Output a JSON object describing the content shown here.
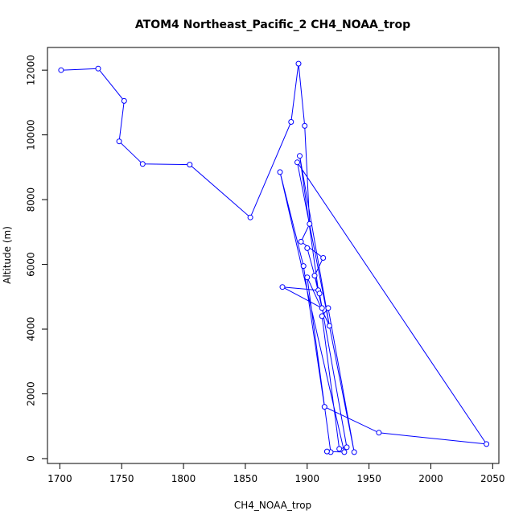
{
  "chart_data": {
    "type": "line",
    "title": "ATOM4 Northeast_Pacific_2 CH4_NOAA_trop",
    "xlabel": "CH4_NOAA_trop",
    "ylabel": "Altitude (m)",
    "xlim": [
      1690,
      2055
    ],
    "ylim": [
      -150,
      12700
    ],
    "xticks": [
      1700,
      1750,
      1800,
      1850,
      1900,
      1950,
      2000,
      2050
    ],
    "yticks": [
      0,
      2000,
      4000,
      6000,
      8000,
      10000,
      12000
    ],
    "grid": false,
    "legend": "none",
    "marker": "open-circle",
    "color": "#0000ff",
    "series": [
      {
        "x": [
          1701,
          1731,
          1752,
          1748,
          1767,
          1805,
          1854,
          1887,
          1893,
          1898,
          1902,
          1895,
          1913,
          1906,
          1912,
          1880,
          1909,
          1894,
          1918,
          1900,
          1919,
          1916,
          1930,
          1878,
          1897,
          1914,
          1958,
          2045,
          1892,
          1938,
          1917,
          1912,
          1926,
          1932,
          1910,
          1900
        ],
        "y": [
          12000,
          12050,
          11050,
          9800,
          9100,
          9080,
          7450,
          10400,
          12200,
          10280,
          7250,
          6700,
          6200,
          5650,
          4650,
          5300,
          5200,
          9350,
          4100,
          5600,
          200,
          220,
          200,
          8850,
          5950,
          1600,
          800,
          450,
          9150,
          200,
          4650,
          4400,
          300,
          350,
          5100,
          6500
        ]
      }
    ]
  }
}
